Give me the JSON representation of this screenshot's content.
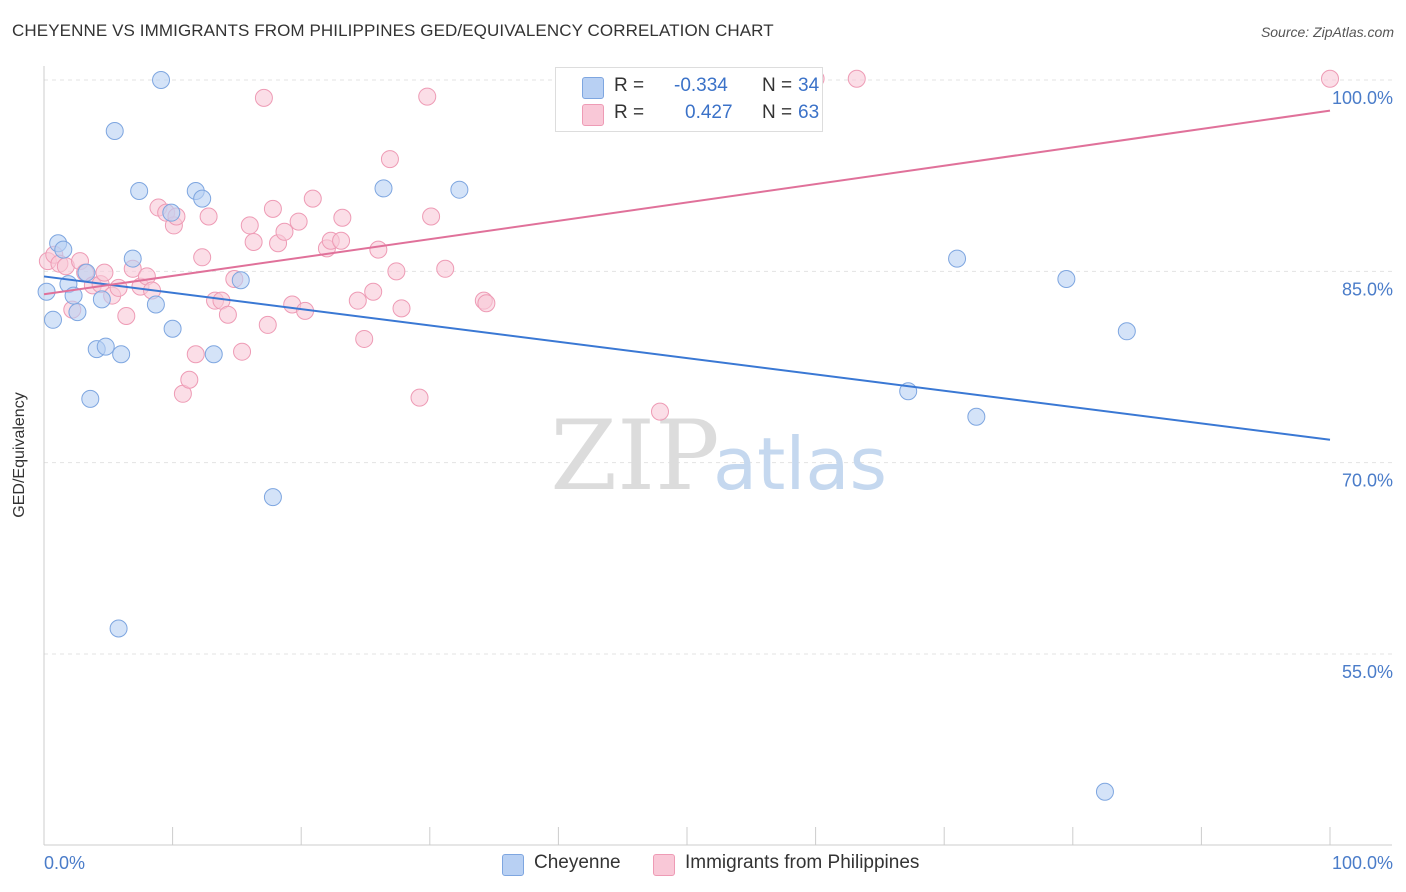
{
  "title": "CHEYENNE VS IMMIGRANTS FROM PHILIPPINES GED/EQUIVALENCY CORRELATION CHART",
  "source": "Source: ZipAtlas.com",
  "watermark": {
    "zip": "ZIP",
    "atlas": "atlas"
  },
  "legend": {
    "r_label": "R =",
    "n_label": "N =",
    "rows": [
      {
        "name": "Cheyenne",
        "r": "-0.334",
        "n": "34"
      },
      {
        "name": "Immigrants from Philippines",
        "r": "0.427",
        "n": "63"
      }
    ]
  },
  "colors": {
    "blue_fill": "#b8d0f3",
    "blue_stroke": "#7ea6e0",
    "blue_line": "#3a78d4",
    "pink_fill": "#f9c8d7",
    "pink_stroke": "#ee9bb5",
    "pink_line": "#e0719a",
    "tick_label": "#4a7cc9",
    "grid": "#e3e3e3"
  },
  "chart_data": {
    "type": "scatter",
    "title": "CHEYENNE VS IMMIGRANTS FROM PHILIPPINES GED/EQUIVALENCY CORRELATION CHART",
    "xlabel": "",
    "ylabel": "GED/Equivalency",
    "xlim": [
      0,
      100
    ],
    "ylim": [
      40,
      102
    ],
    "x_tick_labels": [
      "0.0%",
      "100.0%"
    ],
    "y_ticks": [
      {
        "value": 100,
        "label": "100.0%"
      },
      {
        "value": 85,
        "label": "85.0%"
      },
      {
        "value": 70,
        "label": "70.0%"
      },
      {
        "value": 55,
        "label": "55.0%"
      }
    ],
    "series": [
      {
        "name": "Cheyenne",
        "color": "blue",
        "trend": {
          "x0": 0,
          "y0": 84.6,
          "x1": 100,
          "y1": 71.8
        },
        "points": [
          [
            0.2,
            83.4
          ],
          [
            0.7,
            81.2
          ],
          [
            1.1,
            87.2
          ],
          [
            1.5,
            86.7
          ],
          [
            1.9,
            84.0
          ],
          [
            2.3,
            83.1
          ],
          [
            2.6,
            81.8
          ],
          [
            3.3,
            84.9
          ],
          [
            3.6,
            75.0
          ],
          [
            4.1,
            78.9
          ],
          [
            4.5,
            82.8
          ],
          [
            4.8,
            79.1
          ],
          [
            5.5,
            96.0
          ],
          [
            6.0,
            78.5
          ],
          [
            6.9,
            86.0
          ],
          [
            7.4,
            91.3
          ],
          [
            8.7,
            82.4
          ],
          [
            9.1,
            100.0
          ],
          [
            9.9,
            89.6
          ],
          [
            10.0,
            80.5
          ],
          [
            11.8,
            91.3
          ],
          [
            12.3,
            90.7
          ],
          [
            13.2,
            78.5
          ],
          [
            15.3,
            84.3
          ],
          [
            17.8,
            67.3
          ],
          [
            26.4,
            91.5
          ],
          [
            32.3,
            91.4
          ],
          [
            5.8,
            57.0
          ],
          [
            71.0,
            86.0
          ],
          [
            67.2,
            75.6
          ],
          [
            72.5,
            73.6
          ],
          [
            79.5,
            84.4
          ],
          [
            84.2,
            80.3
          ],
          [
            82.5,
            44.2
          ]
        ]
      },
      {
        "name": "Immigrants from Philippines",
        "color": "pink",
        "trend": {
          "x0": 0,
          "y0": 83.2,
          "x1": 100,
          "y1": 97.6
        },
        "points": [
          [
            0.3,
            85.8
          ],
          [
            0.8,
            86.3
          ],
          [
            1.2,
            85.6
          ],
          [
            1.7,
            85.4
          ],
          [
            2.2,
            82.0
          ],
          [
            2.8,
            85.8
          ],
          [
            3.2,
            84.9
          ],
          [
            3.8,
            83.9
          ],
          [
            4.4,
            84.0
          ],
          [
            4.7,
            84.9
          ],
          [
            5.3,
            83.1
          ],
          [
            5.8,
            83.7
          ],
          [
            6.4,
            81.5
          ],
          [
            6.9,
            85.2
          ],
          [
            7.5,
            83.8
          ],
          [
            8.0,
            84.6
          ],
          [
            8.4,
            83.5
          ],
          [
            8.9,
            90.0
          ],
          [
            9.5,
            89.6
          ],
          [
            10.1,
            88.6
          ],
          [
            10.3,
            89.3
          ],
          [
            10.8,
            75.4
          ],
          [
            11.3,
            76.5
          ],
          [
            11.8,
            78.5
          ],
          [
            12.3,
            86.1
          ],
          [
            12.8,
            89.3
          ],
          [
            13.3,
            82.7
          ],
          [
            13.8,
            82.7
          ],
          [
            14.3,
            81.6
          ],
          [
            14.8,
            84.4
          ],
          [
            15.4,
            78.7
          ],
          [
            16.0,
            88.6
          ],
          [
            16.3,
            87.3
          ],
          [
            17.1,
            98.6
          ],
          [
            17.4,
            80.8
          ],
          [
            17.8,
            89.9
          ],
          [
            18.2,
            87.2
          ],
          [
            18.7,
            88.1
          ],
          [
            19.3,
            82.4
          ],
          [
            19.8,
            88.9
          ],
          [
            20.3,
            81.9
          ],
          [
            20.9,
            90.7
          ],
          [
            22.0,
            86.8
          ],
          [
            22.3,
            87.4
          ],
          [
            23.1,
            87.4
          ],
          [
            23.2,
            89.2
          ],
          [
            24.4,
            82.7
          ],
          [
            24.9,
            79.7
          ],
          [
            25.6,
            83.4
          ],
          [
            26.0,
            86.7
          ],
          [
            26.9,
            93.8
          ],
          [
            27.4,
            85.0
          ],
          [
            27.8,
            82.1
          ],
          [
            29.2,
            75.1
          ],
          [
            29.8,
            98.7
          ],
          [
            30.1,
            89.3
          ],
          [
            31.2,
            85.2
          ],
          [
            34.2,
            82.7
          ],
          [
            34.4,
            82.5
          ],
          [
            47.9,
            74.0
          ],
          [
            60.0,
            100.1
          ],
          [
            63.2,
            100.1
          ],
          [
            100.0,
            100.1
          ]
        ]
      }
    ]
  }
}
